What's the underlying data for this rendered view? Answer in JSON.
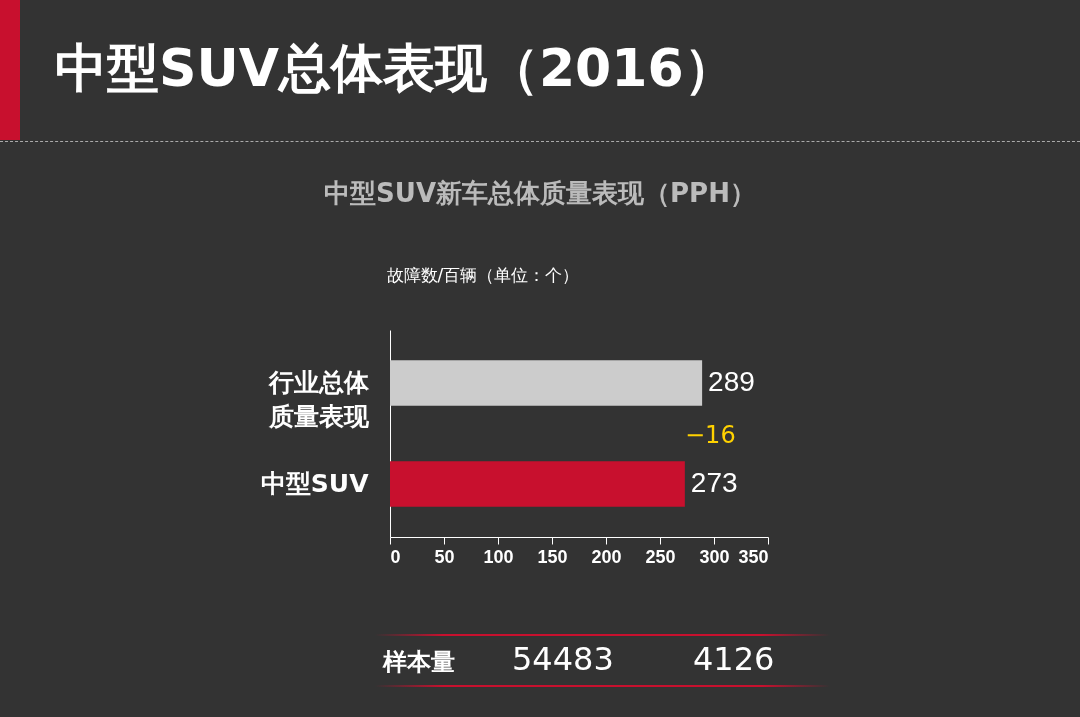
{
  "chart_data": {
    "type": "bar",
    "orientation": "horizontal",
    "title": "中型SUV总体表现（2016）",
    "subtitle": "中型SUV新车总体质量表现（PPH）",
    "xlabel": "故障数/百辆（单位：个）",
    "categories": [
      "行业总体质量表现",
      "中型SUV"
    ],
    "values": [
      289,
      273
    ],
    "colors": [
      "#cccccc",
      "#c8102e"
    ],
    "xlim": [
      0,
      350
    ],
    "xticks": [
      0,
      50,
      100,
      150,
      200,
      250,
      300,
      350
    ],
    "data_labels": true,
    "grid": false,
    "legend": false,
    "annotations": [
      "−16",
      "样本量",
      "54483",
      "4126"
    ]
  }
}
